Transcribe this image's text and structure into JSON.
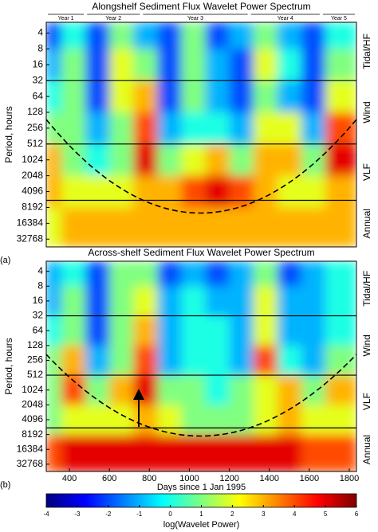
{
  "chart_data": [
    {
      "type": "heatmap",
      "title": "Alongshelf Sediment Flux Wavelet Power Spectrum",
      "panel_label": "(a)",
      "ylabel": "Period, hours",
      "log_y": true,
      "x": [
        300,
        420,
        540,
        660,
        780,
        900,
        1020,
        1140,
        1260,
        1380,
        1500,
        1620,
        1740
      ],
      "y": [
        4,
        16,
        64,
        256,
        1024,
        4096,
        16384
      ],
      "values": [
        [
          -2,
          0,
          -2,
          1,
          -1,
          -2,
          1,
          -2,
          -1,
          1,
          -1,
          -2,
          0
        ],
        [
          -1,
          1,
          -2,
          2,
          1,
          -2,
          1,
          -1,
          -2,
          2,
          0,
          -2,
          1
        ],
        [
          0,
          1,
          -2,
          2,
          3,
          -2,
          1,
          -1,
          -2,
          1,
          -1,
          -2,
          2
        ],
        [
          1,
          1,
          -1,
          1,
          4,
          -1,
          0,
          0,
          -1,
          2,
          2,
          -1,
          4
        ],
        [
          3,
          1,
          0,
          1,
          5,
          1,
          2,
          3,
          1,
          3,
          3,
          1,
          5
        ],
        [
          3,
          2,
          2,
          2,
          3,
          3,
          4,
          5,
          4,
          3,
          2,
          2,
          3
        ],
        [
          2,
          3,
          3,
          3,
          3,
          3,
          3,
          3,
          3,
          3,
          3,
          3,
          3
        ]
      ],
      "xlim": [
        284,
        1836
      ],
      "ylim": [
        2.5,
        46000
      ],
      "yticks": [
        4,
        8,
        16,
        32,
        64,
        128,
        256,
        512,
        1024,
        2048,
        4096,
        8192,
        16384,
        32768
      ],
      "bands": [
        {
          "label": "Tidal/HF",
          "range": [
            2.5,
            32
          ]
        },
        {
          "label": "Wind",
          "range": [
            32,
            512
          ]
        },
        {
          "label": "VLF",
          "range": [
            512,
            6000
          ]
        },
        {
          "label": "Annual",
          "range": [
            6000,
            46000
          ]
        }
      ],
      "years": [
        {
          "label": "Year 1",
          "range": [
            284,
            480
          ]
        },
        {
          "label": "Year 2",
          "range": [
            480,
            760
          ]
        },
        {
          "label": "Year 3",
          "range": [
            760,
            1300
          ]
        },
        {
          "label": "Year 4",
          "range": [
            1300,
            1660
          ]
        },
        {
          "label": "Year 5",
          "range": [
            1660,
            1836
          ]
        }
      ]
    },
    {
      "type": "heatmap",
      "title": "Across-shelf Sediment Flux Wavelet Power Spectrum",
      "panel_label": "(b)",
      "ylabel": "Period, hours",
      "xlabel": "Days since 1 Jan 1995",
      "log_y": true,
      "x": [
        300,
        420,
        540,
        660,
        780,
        900,
        1020,
        1140,
        1260,
        1380,
        1500,
        1620,
        1740
      ],
      "y": [
        4,
        16,
        64,
        256,
        1024,
        4096,
        16384
      ],
      "values": [
        [
          -1,
          0,
          -2,
          1,
          1,
          -2,
          -1,
          -2,
          -1,
          1,
          -2,
          -1,
          0
        ],
        [
          -1,
          1,
          -2,
          1,
          2,
          -1,
          0,
          -1,
          -1,
          2,
          -1,
          -1,
          0
        ],
        [
          0,
          1,
          -2,
          1,
          3,
          -1,
          0,
          0,
          -1,
          2,
          -1,
          -1,
          0
        ],
        [
          1,
          3,
          -1,
          1,
          4,
          -1,
          0,
          0,
          -1,
          4,
          0,
          -1,
          1
        ],
        [
          1,
          4,
          1,
          3,
          5,
          1,
          1,
          0,
          1,
          2,
          3,
          1,
          3
        ],
        [
          1,
          2,
          2,
          2,
          3,
          2,
          1,
          1,
          1,
          2,
          3,
          2,
          2
        ],
        [
          4,
          5,
          5,
          5,
          5,
          5,
          5,
          5,
          5,
          5,
          5,
          4,
          4
        ]
      ],
      "xlim": [
        284,
        1836
      ],
      "ylim": [
        2.5,
        46000
      ],
      "xticks": [
        400,
        600,
        800,
        1000,
        1200,
        1400,
        1600,
        1800
      ],
      "yticks": [
        4,
        8,
        16,
        32,
        64,
        128,
        256,
        512,
        1024,
        2048,
        4096,
        8192,
        16384,
        32768
      ],
      "bands": [
        {
          "label": "Tidal/HF",
          "range": [
            2.5,
            32
          ]
        },
        {
          "label": "Wind",
          "range": [
            32,
            512
          ]
        },
        {
          "label": "VLF",
          "range": [
            512,
            6000
          ]
        },
        {
          "label": "Annual",
          "range": [
            6000,
            46000
          ]
        }
      ]
    }
  ],
  "colorbar": {
    "label": "log(Wavelet Power)",
    "lim": [
      -4,
      6
    ],
    "ticks": [
      -4,
      -3,
      -2,
      -1,
      0,
      1,
      2,
      3,
      4,
      5,
      6
    ]
  }
}
